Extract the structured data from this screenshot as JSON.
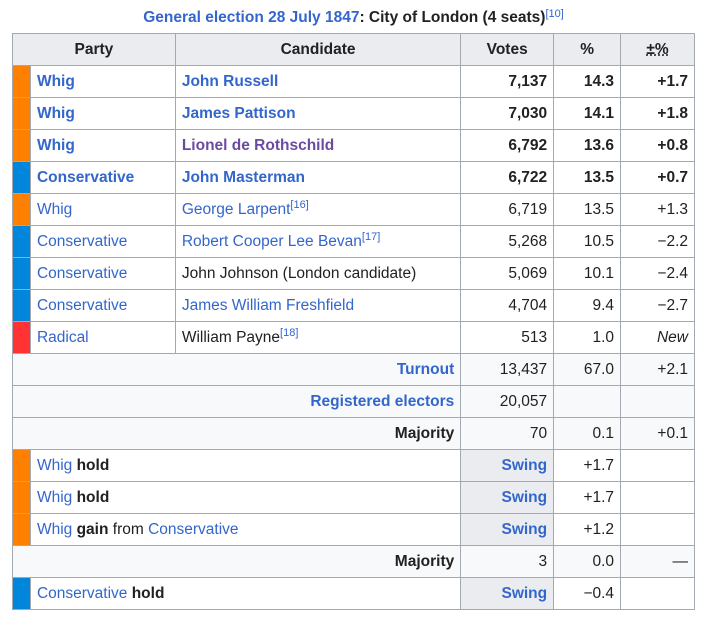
{
  "caption": {
    "link": "General election 28 July 1847",
    "rest": ": City of London (4 seats)",
    "ref": "[10]"
  },
  "headers": {
    "party": "Party",
    "candidate": "Candidate",
    "votes": "Votes",
    "pct": "%",
    "change": "±%"
  },
  "colors": {
    "whig": "#ff7f00",
    "conservative": "#0087dc",
    "radical": "#ff3333"
  },
  "rows": [
    {
      "party": "Whig",
      "color": "#ff7f00",
      "candidate": "John Russell",
      "ref": "",
      "votes": "7,137",
      "pct": "14.3",
      "change": "+1.7",
      "bold": true,
      "cand_style": "lnk"
    },
    {
      "party": "Whig",
      "color": "#ff7f00",
      "candidate": "James Pattison",
      "ref": "",
      "votes": "7,030",
      "pct": "14.1",
      "change": "+1.8",
      "bold": true,
      "cand_style": "lnk"
    },
    {
      "party": "Whig",
      "color": "#ff7f00",
      "candidate": "Lionel de Rothschild",
      "ref": "",
      "votes": "6,792",
      "pct": "13.6",
      "change": "+0.8",
      "bold": true,
      "cand_style": "visited"
    },
    {
      "party": "Conservative",
      "color": "#0087dc",
      "candidate": "John Masterman",
      "ref": "",
      "votes": "6,722",
      "pct": "13.5",
      "change": "+0.7",
      "bold": true,
      "cand_style": "lnk"
    },
    {
      "party": "Whig",
      "color": "#ff7f00",
      "candidate": "George Larpent",
      "ref": "[16]",
      "votes": "6,719",
      "pct": "13.5",
      "change": "+1.3",
      "bold": false,
      "cand_style": "lnk"
    },
    {
      "party": "Conservative",
      "color": "#0087dc",
      "candidate": "Robert Cooper Lee Bevan",
      "ref": "[17]",
      "votes": "5,268",
      "pct": "10.5",
      "change": "−2.2",
      "bold": false,
      "cand_style": "lnk"
    },
    {
      "party": "Conservative",
      "color": "#0087dc",
      "candidate": "John Johnson (London candidate)",
      "ref": "",
      "votes": "5,069",
      "pct": "10.1",
      "change": "−2.4",
      "bold": false,
      "cand_style": "plain"
    },
    {
      "party": "Conservative",
      "color": "#0087dc",
      "candidate": "James William Freshfield",
      "ref": "",
      "votes": "4,704",
      "pct": "9.4",
      "change": "−2.7",
      "bold": false,
      "cand_style": "lnk"
    },
    {
      "party": "Radical",
      "color": "#ff3333",
      "candidate": "William Payne",
      "ref": "[18]",
      "votes": "513",
      "pct": "1.0",
      "change": "New",
      "bold": false,
      "cand_style": "plain",
      "change_italic": true
    }
  ],
  "turnout": {
    "label": "Turnout",
    "votes": "13,437",
    "pct": "67.0",
    "change": "+2.1"
  },
  "registered": {
    "label": "Registered electors",
    "votes": "20,057"
  },
  "majority1": {
    "label": "Majority",
    "votes": "70",
    "pct": "0.1",
    "change": "+0.1"
  },
  "holds": [
    {
      "party": "Whig",
      "verb": "hold",
      "from": "",
      "from_party": "",
      "swing_label": "Swing",
      "swing": "+1.7",
      "color": "#ff7f00"
    },
    {
      "party": "Whig",
      "verb": "hold",
      "from": "",
      "from_party": "",
      "swing_label": "Swing",
      "swing": "+1.7",
      "color": "#ff7f00"
    },
    {
      "party": "Whig",
      "verb": "gain",
      "from": "from",
      "from_party": "Conservative",
      "swing_label": "Swing",
      "swing": "+1.2",
      "color": "#ff7f00"
    }
  ],
  "majority2": {
    "label": "Majority",
    "votes": "3",
    "pct": "0.0",
    "change": "—"
  },
  "hold_last": {
    "party": "Conservative",
    "verb": "hold",
    "swing_label": "Swing",
    "swing": "−0.4",
    "color": "#0087dc"
  }
}
